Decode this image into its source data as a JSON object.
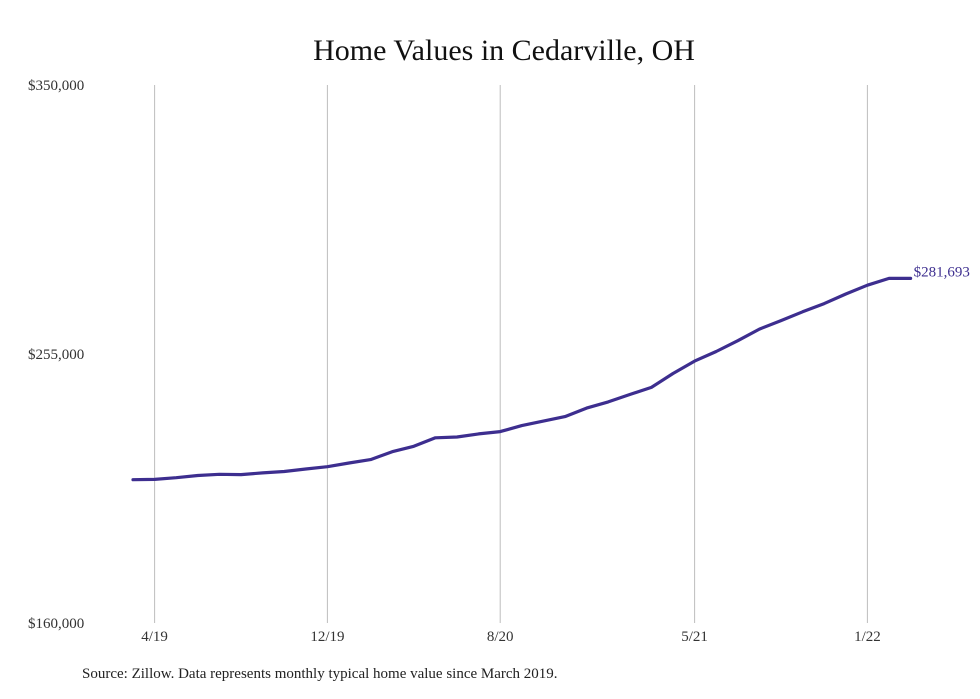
{
  "chart_data": {
    "type": "line",
    "title": "Home Values in Cedarville, OH",
    "xlabel": "",
    "ylabel": "",
    "ylim": [
      160000,
      350000
    ],
    "y_ticks": [
      "$350,000",
      "$255,000",
      "$160,000"
    ],
    "x_ticks": [
      "4/19",
      "12/19",
      "8/20",
      "5/21",
      "1/22"
    ],
    "grid": "vertical",
    "series": [
      {
        "color": "#3d2e8f",
        "x": [
          "3/19",
          "4/19",
          "5/19",
          "6/19",
          "7/19",
          "8/19",
          "9/19",
          "10/19",
          "11/19",
          "12/19",
          "1/20",
          "2/20",
          "3/20",
          "4/20",
          "5/20",
          "6/20",
          "7/20",
          "8/20",
          "9/20",
          "10/20",
          "11/20",
          "12/20",
          "1/21",
          "2/21",
          "3/21",
          "4/21",
          "5/21",
          "6/21",
          "7/21",
          "8/21",
          "9/21",
          "10/21",
          "11/21",
          "12/21",
          "1/22",
          "2/22",
          "3/22"
        ],
        "values": [
          210600,
          210700,
          211300,
          212100,
          212500,
          212400,
          213000,
          213500,
          214400,
          215200,
          216500,
          217700,
          220500,
          222400,
          225400,
          225700,
          226800,
          227600,
          229700,
          231300,
          232900,
          235900,
          238100,
          240700,
          243200,
          248100,
          252500,
          255900,
          259700,
          263800,
          266800,
          269900,
          272800,
          276200,
          279300,
          281693,
          281693
        ]
      }
    ],
    "annotations": [
      "$281,693"
    ],
    "source": "Source: Zillow. Data represents monthly typical home value since March 2019."
  }
}
